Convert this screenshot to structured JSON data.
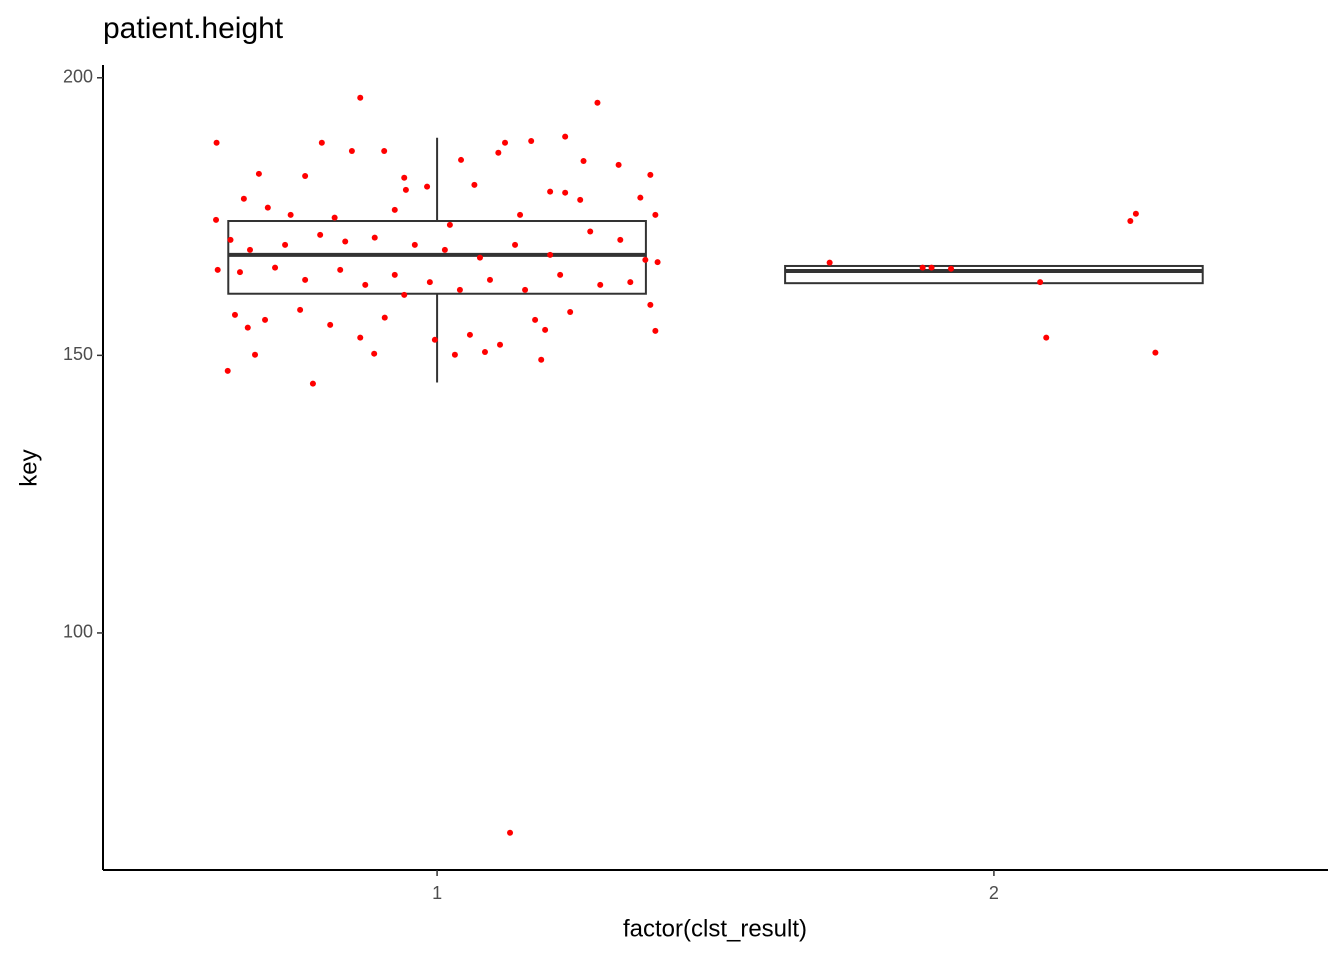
{
  "chart_data": {
    "type": "box",
    "title": "patient.height",
    "x_label": "factor(clst_result)",
    "y_label": "key",
    "categories": [
      "1",
      "2"
    ],
    "xlim": [
      0.4,
      2.6
    ],
    "ylim": [
      57.3,
      202.3
    ],
    "yticks": [
      100,
      150,
      200
    ],
    "box_color": "#333333",
    "boxes": [
      {
        "whisker_low": 145.1,
        "q1": 161.1,
        "median": 168.1,
        "q3": 174.2,
        "whisker_high": 189.2
      },
      {
        "whisker_low": 163.0,
        "q1": 163.0,
        "median": 165.2,
        "q3": 166.1,
        "whisker_high": 166.1
      }
    ],
    "points": {
      "color": "#ff0000",
      "x": [
        0.604,
        0.862,
        1.288,
        1.131,
        0.777,
        0.624,
        0.673,
        0.887,
        1.187,
        1.23,
        0.793,
        0.847,
        0.905,
        1.043,
        1.11,
        1.122,
        1.169,
        1.23,
        1.263,
        1.326,
        1.383,
        0.68,
        0.763,
        0.941,
        0.944,
        0.982,
        1.067,
        1.203,
        0.653,
        0.696,
        0.737,
        0.816,
        0.924,
        1.023,
        1.149,
        1.257,
        1.365,
        1.392,
        0.603,
        0.629,
        0.664,
        0.727,
        0.79,
        0.835,
        0.888,
        0.96,
        1.014,
        1.077,
        1.14,
        1.203,
        1.275,
        1.329,
        1.374,
        1.396,
        0.606,
        0.646,
        0.709,
        0.763,
        0.826,
        0.871,
        0.924,
        0.987,
        1.041,
        1.095,
        1.158,
        1.221,
        1.293,
        1.347,
        0.637,
        0.691,
        0.754,
        0.808,
        0.862,
        0.906,
        0.996,
        1.059,
        1.113,
        1.176,
        1.239,
        1.383,
        1.392,
        0.66,
        0.941,
        1.086,
        1.032,
        1.194,
        1.705,
        1.872,
        1.888,
        1.923,
        2.083,
        2.094,
        2.245,
        2.255,
        2.29
      ],
      "y": [
        188.3,
        196.4,
        195.5,
        64.0,
        144.9,
        147.2,
        150.1,
        150.3,
        149.2,
        179.3,
        188.3,
        186.8,
        186.8,
        185.2,
        186.5,
        188.3,
        188.6,
        189.4,
        185.0,
        184.3,
        182.5,
        182.7,
        182.3,
        182.0,
        179.8,
        180.4,
        180.7,
        179.5,
        178.2,
        176.6,
        175.3,
        174.8,
        176.2,
        173.5,
        175.3,
        178.0,
        178.4,
        175.3,
        174.4,
        170.8,
        169.0,
        169.9,
        171.7,
        170.5,
        171.2,
        169.9,
        169.0,
        167.6,
        169.9,
        168.1,
        172.3,
        170.8,
        167.2,
        166.8,
        165.4,
        165.0,
        165.8,
        163.6,
        165.4,
        162.7,
        164.5,
        163.2,
        161.8,
        163.6,
        161.8,
        164.5,
        162.7,
        163.2,
        157.3,
        156.4,
        158.2,
        155.5,
        153.2,
        156.8,
        152.8,
        153.7,
        151.9,
        156.4,
        157.8,
        159.1,
        154.4,
        155.0,
        160.9,
        150.6,
        150.1,
        154.6,
        166.7,
        165.8,
        165.8,
        165.6,
        163.2,
        153.2,
        174.2,
        175.5,
        150.5
      ]
    }
  }
}
